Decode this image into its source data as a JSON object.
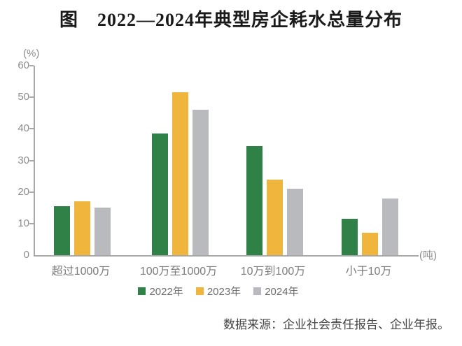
{
  "title": "图　2022—2024年典型房企耗水总量分布",
  "source_note": "数据来源：企业社会责任报告、企业年报。",
  "chart_data": {
    "type": "bar",
    "title": "图 2022—2024年典型房企耗水总量分布",
    "categories": [
      "超过1000万",
      "100万至1000万",
      "10万到100万",
      "小于10万"
    ],
    "series": [
      {
        "name": "2022年",
        "color": "#2f8148",
        "values": [
          15.5,
          38.5,
          34.5,
          11.5
        ]
      },
      {
        "name": "2023年",
        "color": "#f0b53c",
        "values": [
          17,
          51.5,
          24,
          7
        ]
      },
      {
        "name": "2024年",
        "color": "#b9babd",
        "values": [
          15,
          46,
          21,
          18
        ]
      }
    ],
    "ylabel": "(%)",
    "xlabel": "(吨)",
    "ylim": [
      0,
      60
    ],
    "yticks": [
      0,
      10,
      20,
      30,
      40,
      50,
      60
    ],
    "grid": false,
    "legend_position": "bottom"
  },
  "colors": {
    "axis": "#a8a8a8",
    "tick_text": "#8c8c8c",
    "category_text": "#7c7c7c",
    "legend_text": "#6e6e6e",
    "title_text": "#1a1a1a",
    "source_text": "#454545"
  }
}
